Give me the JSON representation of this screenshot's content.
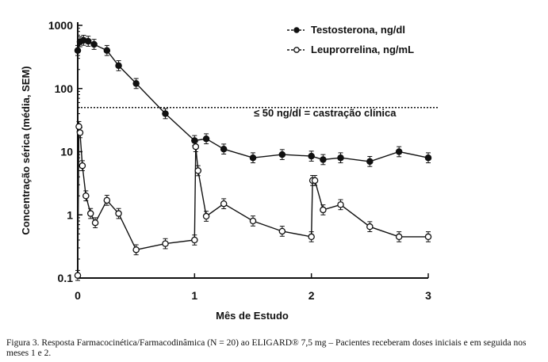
{
  "chart_data": {
    "type": "line",
    "xlabel": "Mês de Estudo",
    "ylabel": "Concentração sérica (média, SEM)",
    "x_ticks": [
      "0",
      "1",
      "2",
      "3"
    ],
    "y_ticks": [
      "0.1",
      "1",
      "10",
      "100",
      "1000"
    ],
    "xlim": [
      0,
      3
    ],
    "ylim": [
      0.1,
      1000
    ],
    "y_scale": "log",
    "legend_position": "top-right",
    "annotation": "≤ 50 ng/dl = castração clínica",
    "threshold": 50,
    "series": [
      {
        "name": "Testosterona, ng/dl",
        "marker": "filled-circle",
        "color": "#111111",
        "x": [
          0,
          0.02,
          0.05,
          0.09,
          0.14,
          0.25,
          0.35,
          0.5,
          0.75,
          1.0,
          1.1,
          1.25,
          1.5,
          1.75,
          2.0,
          2.1,
          2.25,
          2.5,
          2.75,
          3.0
        ],
        "y": [
          400,
          550,
          580,
          560,
          500,
          400,
          230,
          120,
          40,
          15,
          16,
          11,
          8,
          9,
          8.5,
          7.5,
          8,
          7,
          10,
          8
        ]
      },
      {
        "name": "Leuprorrelina, ng/mL",
        "marker": "open-circle",
        "color": "#111111",
        "x": [
          0,
          0.01,
          0.02,
          0.04,
          0.07,
          0.11,
          0.15,
          0.25,
          0.35,
          0.5,
          0.75,
          1.0,
          1.01,
          1.03,
          1.1,
          1.25,
          1.5,
          1.75,
          2.0,
          2.01,
          2.03,
          2.1,
          2.25,
          2.5,
          2.75,
          3.0
        ],
        "y": [
          0.11,
          25,
          20,
          6,
          2,
          1.05,
          0.75,
          1.7,
          1.05,
          0.28,
          0.35,
          0.4,
          12,
          5,
          0.95,
          1.5,
          0.8,
          0.55,
          0.45,
          3.5,
          3.5,
          1.2,
          1.45,
          0.65,
          0.45,
          0.45
        ]
      }
    ]
  },
  "caption": "Figura 3. Resposta Farmacocinética/Farmacodinâmica (N = 20) ao ELIGARD® 7,5 mg – Pacientes receberam doses iniciais e em seguida nos meses 1 e 2."
}
